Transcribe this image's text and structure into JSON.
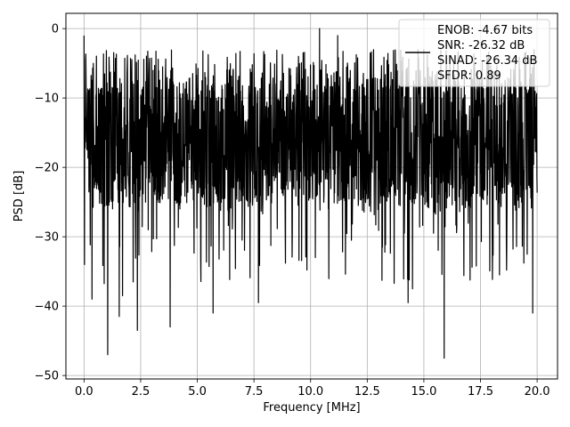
{
  "chart_data": {
    "type": "line",
    "title": "",
    "xlabel": "Frequency [MHz]",
    "ylabel": "PSD [dB]",
    "xlim": [
      -0.8,
      20.9
    ],
    "ylim": [
      -50.5,
      2.2
    ],
    "xticks": [
      0.0,
      2.5,
      5.0,
      7.5,
      10.0,
      12.5,
      15.0,
      17.5,
      20.0
    ],
    "xtick_labels": [
      "0.0",
      "2.5",
      "5.0",
      "7.5",
      "10.0",
      "12.5",
      "15.0",
      "17.5",
      "20.0"
    ],
    "yticks": [
      0,
      -10,
      -20,
      -30,
      -40,
      -50
    ],
    "ytick_labels": [
      "0",
      "−10",
      "−20",
      "−30",
      "−40",
      "−50"
    ],
    "grid": true,
    "legend_position": "top-right",
    "legend_lines": [
      "ENOB: -4.67 bits",
      "SNR: -26.32 dB",
      "SINAD: -26.34 dB",
      "SFDR: 0.89"
    ],
    "series": [
      {
        "color": "#000000",
        "x_range": [
          0.0,
          20.0
        ],
        "num_points": 2048,
        "band": {
          "top": -6,
          "bottom": -26
        },
        "peaks": [
          {
            "x": 0.0,
            "y": -1
          },
          {
            "x": 10.4,
            "y": 0
          },
          {
            "x": 11.2,
            "y": -1
          },
          {
            "x": 14.5,
            "y": -3
          },
          {
            "x": 15.0,
            "y": -3
          }
        ],
        "dips": [
          {
            "x": 0.02,
            "y": -34
          },
          {
            "x": 0.35,
            "y": -39
          },
          {
            "x": 1.05,
            "y": -47
          },
          {
            "x": 1.55,
            "y": -41.5
          },
          {
            "x": 1.7,
            "y": -38.5
          },
          {
            "x": 2.35,
            "y": -43.5
          },
          {
            "x": 3.8,
            "y": -43
          },
          {
            "x": 5.7,
            "y": -41
          },
          {
            "x": 7.7,
            "y": -39.5
          },
          {
            "x": 14.3,
            "y": -39.5
          },
          {
            "x": 14.5,
            "y": -37.5
          },
          {
            "x": 15.9,
            "y": -47.5
          },
          {
            "x": 19.8,
            "y": -41
          }
        ]
      }
    ]
  }
}
